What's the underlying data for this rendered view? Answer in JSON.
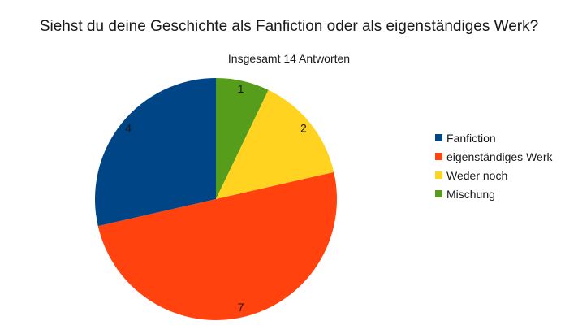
{
  "chart_data": {
    "type": "pie",
    "title": "Siehst du deine Geschichte als Fanfiction oder als eigenständiges Werk?",
    "subtitle": "Insgesamt 14 Antworten",
    "start_angle_deg": 0,
    "direction": "clockwise",
    "legend_position": "right",
    "slices": [
      {
        "label": "Mischung",
        "value": 1,
        "color": "#579d1c"
      },
      {
        "label": "Weder noch",
        "value": 2,
        "color": "#ffd320"
      },
      {
        "label": "eigenständiges Werk",
        "value": 7,
        "color": "#ff420e"
      },
      {
        "label": "Fanfiction",
        "value": 4,
        "color": "#004586"
      }
    ],
    "legend": [
      {
        "label": "Fanfiction",
        "color": "#004586"
      },
      {
        "label": "eigenständiges Werk",
        "color": "#ff420e"
      },
      {
        "label": "Weder noch",
        "color": "#ffd320"
      },
      {
        "label": "Mischung",
        "color": "#579d1c"
      }
    ]
  }
}
